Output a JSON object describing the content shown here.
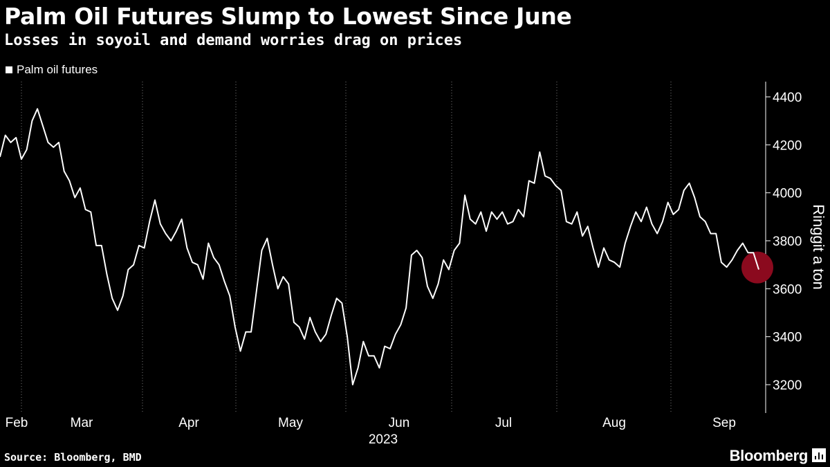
{
  "chart_data": {
    "type": "line",
    "title": "Palm Oil Futures Slump to Lowest Since June",
    "subtitle": "Losses in soyoil and demand worries drag on prices",
    "ylabel": "Ringgit a ton",
    "xlabel": "2023",
    "ylim": [
      3200,
      4400
    ],
    "yticks": [
      "3200",
      "3400",
      "3600",
      "3800",
      "4000",
      "4200",
      "4400"
    ],
    "x_tick_labels": [
      "Feb",
      "Mar",
      "Apr",
      "May",
      "Jun",
      "Jul",
      "Aug",
      "Sep"
    ],
    "legend_position": "top-left",
    "grid": "vertical-dotted",
    "series": [
      {
        "name": "Palm oil futures",
        "color": "#ffffff",
        "values": [
          4150,
          4240,
          4210,
          4230,
          4140,
          4180,
          4300,
          4350,
          4280,
          4210,
          4190,
          4210,
          4090,
          4050,
          3980,
          4020,
          3930,
          3920,
          3780,
          3780,
          3660,
          3560,
          3510,
          3570,
          3680,
          3700,
          3780,
          3770,
          3880,
          3970,
          3870,
          3830,
          3800,
          3840,
          3890,
          3770,
          3710,
          3700,
          3640,
          3790,
          3730,
          3700,
          3630,
          3570,
          3440,
          3340,
          3420,
          3420,
          3590,
          3760,
          3810,
          3700,
          3600,
          3650,
          3620,
          3460,
          3440,
          3390,
          3480,
          3420,
          3380,
          3410,
          3490,
          3560,
          3540,
          3400,
          3200,
          3270,
          3380,
          3320,
          3320,
          3270,
          3360,
          3350,
          3410,
          3450,
          3520,
          3740,
          3760,
          3730,
          3610,
          3560,
          3620,
          3720,
          3680,
          3760,
          3790,
          3990,
          3890,
          3870,
          3920,
          3840,
          3920,
          3890,
          3920,
          3870,
          3880,
          3930,
          3900,
          4050,
          4040,
          4170,
          4070,
          4060,
          4030,
          4010,
          3880,
          3870,
          3920,
          3820,
          3860,
          3770,
          3690,
          3770,
          3720,
          3710,
          3690,
          3790,
          3860,
          3920,
          3880,
          3940,
          3870,
          3830,
          3880,
          3960,
          3910,
          3930,
          4010,
          4040,
          3980,
          3900,
          3880,
          3830,
          3830,
          3710,
          3690,
          3720,
          3760,
          3790,
          3750,
          3750,
          3680
        ]
      }
    ],
    "highlight": {
      "point": "last",
      "color": "#8b0a1e"
    }
  },
  "footer": {
    "source": "Source: Bloomberg, BMD",
    "brand": "Bloomberg"
  }
}
